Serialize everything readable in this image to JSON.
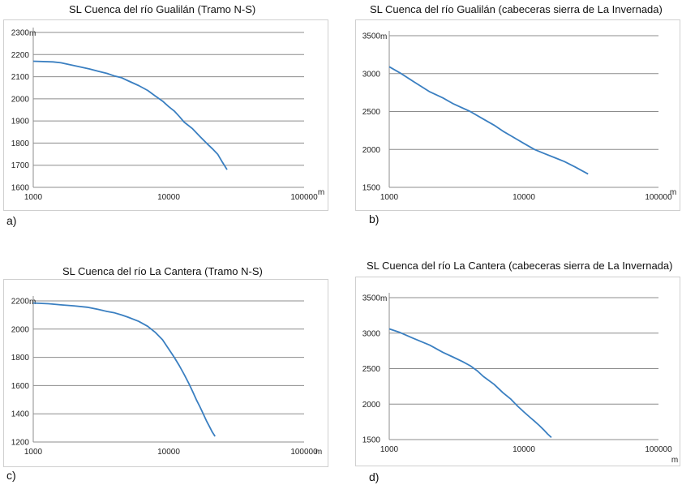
{
  "chart_data": [
    {
      "type": "line",
      "title": "SL Cuenca del río Gualilán (Tramo N-S)",
      "panel_label": "a)",
      "x_scale": "log",
      "xlim": [
        1000,
        100000
      ],
      "ylim": [
        1600,
        2300
      ],
      "x_ticks": [
        1000,
        10000,
        100000
      ],
      "x_tick_labels": [
        "1000",
        "10000",
        "100000"
      ],
      "y_ticks": [
        1600,
        1700,
        1800,
        1900,
        2000,
        2100,
        2200,
        2300
      ],
      "y_tick_labels": [
        "1600",
        "1700",
        "1800",
        "1900",
        "2000",
        "2100",
        "2200",
        "2300"
      ],
      "ylabel": "m",
      "xlabel": "m",
      "grid": true,
      "series": [
        {
          "name": "SL",
          "color": "#3a7fc1",
          "x": [
            1000,
            1400,
            1600,
            2000,
            2600,
            3000,
            3500,
            4000,
            4500,
            5000,
            6000,
            7000,
            8000,
            9000,
            10000,
            11000,
            12000,
            13000,
            15000,
            17000,
            19000,
            21000,
            23000,
            25000,
            27000
          ],
          "y": [
            2170,
            2167,
            2163,
            2150,
            2135,
            2125,
            2115,
            2103,
            2095,
            2082,
            2060,
            2038,
            2012,
            1990,
            1965,
            1945,
            1920,
            1895,
            1865,
            1830,
            1800,
            1775,
            1750,
            1712,
            1680
          ]
        }
      ]
    },
    {
      "type": "line",
      "title": "SL Cuenca del río Gualilán (cabeceras sierra de La Invernada)",
      "panel_label": "b)",
      "x_scale": "log",
      "xlim": [
        1000,
        100000
      ],
      "ylim": [
        1500,
        3500
      ],
      "x_ticks": [
        1000,
        10000,
        100000
      ],
      "x_tick_labels": [
        "1000",
        "10000",
        "100000"
      ],
      "y_ticks": [
        1500,
        2000,
        2500,
        3000,
        3500
      ],
      "y_tick_labels": [
        "1500",
        "2000",
        "2500",
        "3000",
        "3500"
      ],
      "ylabel": "m",
      "xlabel": "m",
      "grid": true,
      "series": [
        {
          "name": "SL",
          "color": "#3a7fc1",
          "x": [
            1000,
            1200,
            1500,
            2000,
            2500,
            3000,
            4000,
            5000,
            6000,
            7000,
            8000,
            10000,
            12000,
            14000,
            17000,
            20000,
            24000,
            27000,
            30000
          ],
          "y": [
            3090,
            3010,
            2900,
            2760,
            2680,
            2600,
            2500,
            2400,
            2320,
            2240,
            2180,
            2080,
            2000,
            1950,
            1890,
            1840,
            1770,
            1720,
            1675
          ]
        }
      ]
    },
    {
      "type": "line",
      "title": "SL Cuenca del río La Cantera (Tramo N-S)",
      "panel_label": "c)",
      "x_scale": "log",
      "xlim": [
        1000,
        100000
      ],
      "ylim": [
        1200,
        2200
      ],
      "x_ticks": [
        1000,
        10000,
        100000
      ],
      "x_tick_labels": [
        "1000",
        "10000",
        "100000"
      ],
      "y_ticks": [
        1200,
        1400,
        1600,
        1800,
        2000,
        2200
      ],
      "y_tick_labels": [
        "1200",
        "1400",
        "1600",
        "1800",
        "2000",
        "2200"
      ],
      "ylabel": "m",
      "xlabel": "m",
      "grid": true,
      "series": [
        {
          "name": "SL",
          "color": "#3a7fc1",
          "x": [
            1000,
            1300,
            1600,
            2000,
            2500,
            3000,
            3500,
            4000,
            4500,
            5000,
            6000,
            7000,
            8000,
            9000,
            10000,
            11000,
            12000,
            13000,
            14000,
            15000,
            16000,
            17000,
            18000,
            19000,
            20000,
            21000,
            22000
          ],
          "y": [
            2185,
            2180,
            2172,
            2165,
            2155,
            2140,
            2125,
            2115,
            2100,
            2085,
            2055,
            2020,
            1975,
            1925,
            1860,
            1800,
            1740,
            1680,
            1620,
            1560,
            1500,
            1450,
            1400,
            1350,
            1310,
            1270,
            1240
          ]
        }
      ]
    },
    {
      "type": "line",
      "title": "SL Cuenca del río La Cantera (cabeceras sierra de La Invernada)",
      "panel_label": "d)",
      "x_scale": "log",
      "xlim": [
        1000,
        100000
      ],
      "ylim": [
        1500,
        3500
      ],
      "x_ticks": [
        1000,
        10000,
        100000
      ],
      "x_tick_labels": [
        "1000",
        "10000",
        "100000"
      ],
      "y_ticks": [
        1500,
        2000,
        2500,
        3000,
        3500
      ],
      "y_tick_labels": [
        "1500",
        "2000",
        "2500",
        "3000",
        "3500"
      ],
      "ylabel": "m",
      "xlabel": "m",
      "grid": true,
      "series": [
        {
          "name": "SL",
          "color": "#3a7fc1",
          "x": [
            1000,
            1200,
            1500,
            2000,
            2500,
            3000,
            3500,
            4000,
            4500,
            5000,
            6000,
            7000,
            8000,
            9000,
            10000,
            11000,
            12000,
            13000,
            14000,
            15000,
            16000
          ],
          "y": [
            3060,
            3010,
            2930,
            2830,
            2730,
            2660,
            2600,
            2540,
            2470,
            2390,
            2280,
            2160,
            2070,
            1970,
            1890,
            1820,
            1760,
            1700,
            1640,
            1580,
            1530
          ]
        }
      ]
    }
  ]
}
